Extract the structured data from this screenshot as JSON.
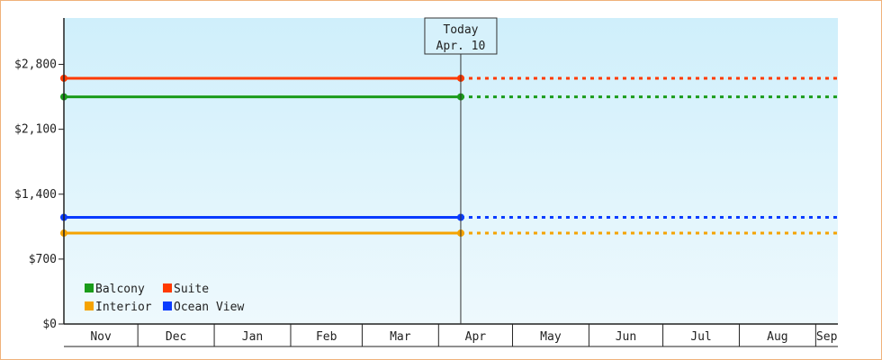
{
  "chart_data": {
    "type": "line",
    "y_ticks": [
      "$0",
      "$700",
      "$1,400",
      "$2,100",
      "$2,800"
    ],
    "y_tick_values": [
      0,
      700,
      1400,
      2100,
      2800
    ],
    "ylim": [
      0,
      3300
    ],
    "months": [
      "Nov",
      "Dec",
      "Jan",
      "Feb",
      "Mar",
      "Apr",
      "May",
      "Jun",
      "Jul",
      "Aug",
      "Sep"
    ],
    "x_start": "2023-11-01",
    "x_end": "2024-09-10",
    "today_label_line1": "Today",
    "today_label_line2": "Apr. 10",
    "today_date": "2024-04-10",
    "series": [
      {
        "name": "Balcony",
        "color": "#1a9c1a",
        "values": [
          2450,
          2450
        ]
      },
      {
        "name": "Suite",
        "color": "#ff3a00",
        "values": [
          2650,
          2650
        ]
      },
      {
        "name": "Interior",
        "color": "#f5a300",
        "values": [
          980,
          980
        ]
      },
      {
        "name": "Ocean View",
        "color": "#0a3cff",
        "values": [
          1150,
          1150
        ]
      }
    ],
    "series_dates": [
      "2023-11-01",
      "2024-04-10"
    ],
    "legend_position": "bottom-left",
    "grid": false
  }
}
